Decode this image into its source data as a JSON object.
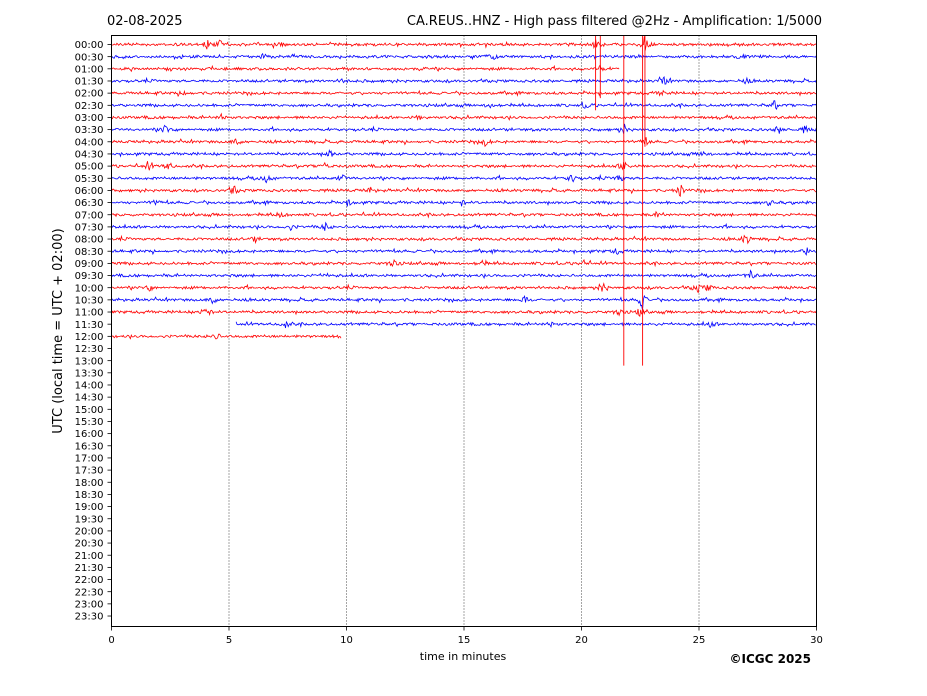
{
  "header": {
    "date": "02-08-2025",
    "title": "CA.REUS..HNZ - High pass filtered @2Hz - Amplification: 1/5000"
  },
  "copyright": "©ICGC 2025",
  "colors": {
    "odd_trace": "#ff0000",
    "even_trace": "#0000ff",
    "axes": "#000000"
  },
  "chart_data": {
    "type": "line",
    "title": "CA.REUS..HNZ - High pass filtered @2Hz - Amplification: 1/5000",
    "xlabel": "time in minutes",
    "ylabel": "UTC (local time = UTC + 02:00)",
    "xlim": [
      0,
      30
    ],
    "x_ticks": [
      "0",
      "5",
      "10",
      "15",
      "20",
      "25",
      "30"
    ],
    "vertical_gridlines_at": [
      5,
      10,
      15,
      20,
      25
    ],
    "y_tick_labels": [
      "00:00",
      "00:30",
      "01:00",
      "01:30",
      "02:00",
      "02:30",
      "03:00",
      "03:30",
      "04:00",
      "04:30",
      "05:00",
      "05:30",
      "06:00",
      "06:30",
      "07:00",
      "07:30",
      "08:00",
      "08:30",
      "09:00",
      "09:30",
      "10:00",
      "10:30",
      "11:00",
      "11:30",
      "12:00",
      "12:30",
      "13:00",
      "13:30",
      "14:00",
      "14:30",
      "15:00",
      "15:30",
      "16:00",
      "16:30",
      "17:00",
      "17:30",
      "18:00",
      "18:30",
      "19:00",
      "19:30",
      "20:00",
      "20:30",
      "21:00",
      "21:30",
      "22:00",
      "22:30",
      "23:00",
      "23:30"
    ],
    "series": [
      {
        "row": "00:00",
        "color": "red",
        "x_start": 0,
        "x_end": 30,
        "events": [
          [
            4.1,
            0.5
          ],
          [
            4.6,
            0.5
          ],
          [
            7.1,
            0.35
          ],
          [
            20.6,
            0.5
          ],
          [
            22.7,
            1.0
          ]
        ]
      },
      {
        "row": "00:30",
        "color": "blue",
        "x_start": 0,
        "x_end": 30,
        "events": [
          [
            6.5,
            0.35
          ],
          [
            16.2,
            0.4
          ],
          [
            26.8,
            0.35
          ]
        ]
      },
      {
        "row": "01:00",
        "color": "red",
        "x_start": 0,
        "x_end": 21.6,
        "events": [
          [
            20.8,
            0.35
          ]
        ]
      },
      {
        "row": "01:30",
        "color": "blue",
        "x_start": 0,
        "x_end": 30,
        "events": [
          [
            9.9,
            0.3
          ],
          [
            23.5,
            0.6
          ],
          [
            27.0,
            0.3
          ]
        ]
      },
      {
        "row": "02:00",
        "color": "red",
        "x_start": 0,
        "x_end": 30,
        "events": [
          [
            3.1,
            0.3
          ],
          [
            23.4,
            0.3
          ]
        ]
      },
      {
        "row": "02:30",
        "color": "blue",
        "x_start": 0,
        "x_end": 30,
        "events": [
          [
            16.1,
            0.3
          ],
          [
            20.2,
            0.4
          ],
          [
            28.2,
            0.4
          ]
        ]
      },
      {
        "row": "03:00",
        "color": "red",
        "x_start": 0,
        "x_end": 30,
        "events": [
          [
            4.7,
            0.4
          ],
          [
            13.1,
            0.3
          ]
        ]
      },
      {
        "row": "03:30",
        "color": "blue",
        "x_start": 0,
        "x_end": 30,
        "events": [
          [
            2.3,
            0.5
          ],
          [
            21.8,
            0.6
          ],
          [
            28.4,
            0.4
          ],
          [
            29.5,
            0.35
          ]
        ]
      },
      {
        "row": "04:00",
        "color": "red",
        "x_start": 0,
        "x_end": 30,
        "events": [
          [
            5.3,
            0.4
          ],
          [
            15.9,
            0.4
          ],
          [
            22.7,
            0.4
          ]
        ]
      },
      {
        "row": "04:30",
        "color": "blue",
        "x_start": 0,
        "x_end": 30,
        "events": [
          [
            9.3,
            0.4
          ],
          [
            25.2,
            0.35
          ]
        ]
      },
      {
        "row": "05:00",
        "color": "red",
        "x_start": 0,
        "x_end": 30,
        "events": [
          [
            1.6,
            0.5
          ],
          [
            2.4,
            0.5
          ],
          [
            9.1,
            0.4
          ],
          [
            21.8,
            0.6
          ]
        ]
      },
      {
        "row": "05:30",
        "color": "blue",
        "x_start": 0,
        "x_end": 30,
        "events": [
          [
            6.6,
            0.5
          ],
          [
            9.8,
            0.4
          ],
          [
            19.6,
            0.5
          ],
          [
            21.6,
            0.5
          ]
        ]
      },
      {
        "row": "06:00",
        "color": "red",
        "x_start": 0,
        "x_end": 30,
        "events": [
          [
            5.2,
            0.5
          ],
          [
            11.0,
            0.3
          ],
          [
            24.2,
            0.6
          ]
        ]
      },
      {
        "row": "06:30",
        "color": "blue",
        "x_start": 0,
        "x_end": 30,
        "events": [
          [
            1.9,
            0.3
          ],
          [
            10.1,
            0.35
          ],
          [
            14.9,
            0.3
          ],
          [
            28.0,
            0.35
          ]
        ]
      },
      {
        "row": "07:00",
        "color": "red",
        "x_start": 0,
        "x_end": 30,
        "events": [
          [
            7.2,
            0.3
          ],
          [
            23.3,
            0.4
          ]
        ]
      },
      {
        "row": "07:30",
        "color": "blue",
        "x_start": 0,
        "x_end": 30,
        "events": [
          [
            7.6,
            0.3
          ],
          [
            9.1,
            0.4
          ]
        ]
      },
      {
        "row": "08:00",
        "color": "red",
        "x_start": 0,
        "x_end": 30,
        "events": [
          [
            6.1,
            0.3
          ],
          [
            27.0,
            0.6
          ]
        ]
      },
      {
        "row": "08:30",
        "color": "blue",
        "x_start": 0,
        "x_end": 30,
        "events": [
          [
            21.5,
            0.3
          ],
          [
            29.6,
            0.35
          ]
        ]
      },
      {
        "row": "09:00",
        "color": "red",
        "x_start": 0,
        "x_end": 30,
        "events": [
          [
            12.0,
            0.5
          ],
          [
            15.8,
            0.3
          ],
          [
            20.1,
            0.35
          ]
        ]
      },
      {
        "row": "09:30",
        "color": "blue",
        "x_start": 0,
        "x_end": 30,
        "events": [
          [
            9.1,
            0.3
          ],
          [
            27.2,
            0.5
          ]
        ]
      },
      {
        "row": "10:00",
        "color": "red",
        "x_start": 0,
        "x_end": 30,
        "events": [
          [
            1.6,
            0.3
          ],
          [
            20.9,
            0.7
          ],
          [
            24.9,
            0.6
          ],
          [
            25.4,
            0.35
          ]
        ]
      },
      {
        "row": "10:30",
        "color": "blue",
        "x_start": 0,
        "x_end": 30,
        "events": [
          [
            4.3,
            0.4
          ],
          [
            17.6,
            0.4
          ],
          [
            22.6,
            1.0
          ]
        ]
      },
      {
        "row": "11:00",
        "color": "red",
        "x_start": 0,
        "x_end": 30,
        "events": [
          [
            4.0,
            0.8
          ],
          [
            21.6,
            0.4
          ],
          [
            22.5,
            0.4
          ]
        ]
      },
      {
        "row": "11:30",
        "color": "blue",
        "x_start": 5.3,
        "x_end": 30,
        "events": [
          [
            7.4,
            0.35
          ],
          [
            18.7,
            0.35
          ],
          [
            25.5,
            0.3
          ]
        ]
      },
      {
        "row": "12:00",
        "color": "red",
        "x_start": 0,
        "x_end": 9.8,
        "events": [
          [
            4.4,
            0.5
          ]
        ]
      }
    ],
    "long_spikes": [
      {
        "x": 20.6,
        "from_row": "00:00",
        "to_row": "02:30",
        "color": "red"
      },
      {
        "x": 20.8,
        "from_row": "00:00",
        "to_row": "02:00",
        "color": "red"
      },
      {
        "x": 21.8,
        "from_row": "00:00",
        "to_row": "13:00",
        "color": "red"
      },
      {
        "x": 22.6,
        "from_row": "00:00",
        "to_row": "13:00",
        "color": "red"
      },
      {
        "x": 22.7,
        "from_row": "00:00",
        "to_row": "04:00",
        "color": "red"
      }
    ]
  }
}
